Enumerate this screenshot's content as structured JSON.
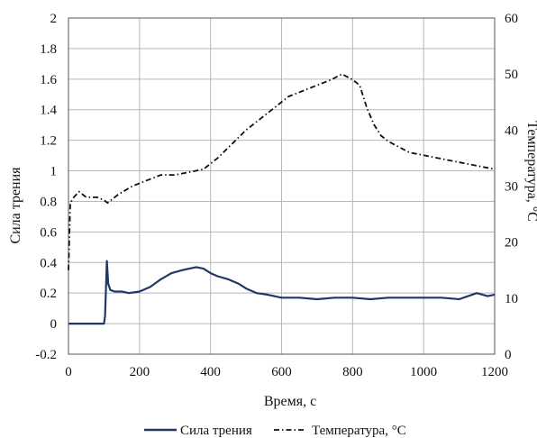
{
  "chart_data": {
    "type": "line",
    "title": "",
    "xlabel": "Время, с",
    "ylabel": "Сила трения",
    "y2label": "Температура, °С",
    "xlim": [
      0,
      1200
    ],
    "ylim": [
      -0.2,
      2
    ],
    "y2lim": [
      0,
      60
    ],
    "x_ticks": [
      "0",
      "200",
      "400",
      "600",
      "800",
      "1000",
      "1200"
    ],
    "y_ticks": [
      "-0.2",
      "0",
      "0.2",
      "0.4",
      "0.6",
      "0.8",
      "1",
      "1.2",
      "1.4",
      "1.6",
      "1.8",
      "2"
    ],
    "y2_ticks": [
      "0",
      "10",
      "20",
      "30",
      "40",
      "50",
      "60"
    ],
    "grid": true,
    "legend_position": "bottom",
    "series": [
      {
        "name": "Сила трения",
        "axis": "left",
        "style": "solid",
        "color": "#1f3864",
        "x": [
          0,
          100,
          103,
          108,
          112,
          118,
          130,
          150,
          170,
          200,
          230,
          260,
          290,
          320,
          340,
          360,
          380,
          400,
          420,
          450,
          480,
          500,
          530,
          560,
          600,
          650,
          700,
          750,
          800,
          850,
          900,
          950,
          1000,
          1050,
          1100,
          1150,
          1180,
          1200
        ],
        "y": [
          0,
          0,
          0.05,
          0.41,
          0.26,
          0.22,
          0.21,
          0.21,
          0.2,
          0.21,
          0.24,
          0.29,
          0.33,
          0.35,
          0.36,
          0.37,
          0.36,
          0.33,
          0.31,
          0.29,
          0.26,
          0.23,
          0.2,
          0.19,
          0.17,
          0.17,
          0.16,
          0.17,
          0.17,
          0.16,
          0.17,
          0.17,
          0.17,
          0.17,
          0.16,
          0.2,
          0.18,
          0.19
        ]
      },
      {
        "name": "Температура, °С",
        "axis": "right",
        "style": "dash-dot",
        "color": "#111111",
        "x": [
          0,
          5,
          15,
          30,
          50,
          80,
          100,
          110,
          140,
          180,
          220,
          260,
          300,
          340,
          380,
          420,
          460,
          500,
          540,
          580,
          620,
          660,
          700,
          740,
          770,
          800,
          820,
          840,
          860,
          880,
          900,
          930,
          960,
          1000,
          1040,
          1080,
          1120,
          1160,
          1200
        ],
        "y": [
          15,
          27,
          28,
          29,
          28,
          28,
          27.5,
          27,
          28.5,
          30,
          31,
          32,
          32,
          32.5,
          33,
          35,
          37.5,
          40,
          42,
          44,
          46,
          47,
          48,
          49,
          50,
          49,
          48,
          44,
          41,
          39,
          38,
          37,
          36,
          35.5,
          35,
          34.5,
          34,
          33.5,
          33
        ]
      }
    ]
  }
}
